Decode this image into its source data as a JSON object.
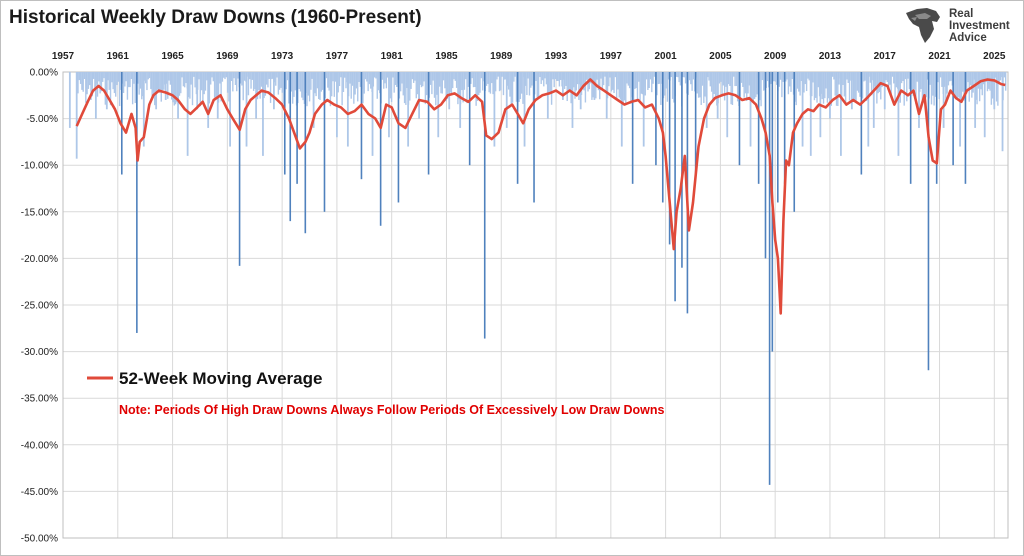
{
  "chart_data": {
    "type": "bar+line",
    "title": "Historical Weekly Draw Downs (1960-Present)",
    "xlim": [
      1957,
      2026
    ],
    "ylim": [
      -50,
      0
    ],
    "y_ticks": [
      0,
      -5,
      -10,
      -15,
      -20,
      -25,
      -30,
      -35,
      -40,
      -45,
      -50
    ],
    "y_tick_labels": [
      "0.00%",
      "-5.00%",
      "-10.00%",
      "-15.00%",
      "-20.00%",
      "-25.00%",
      "-30.00%",
      "-35.00%",
      "-40.00%",
      "-45.00%",
      "-50.00%"
    ],
    "x_ticks": [
      1957,
      1961,
      1965,
      1969,
      1973,
      1977,
      1981,
      1985,
      1989,
      1993,
      1997,
      2001,
      2005,
      2009,
      2013,
      2017,
      2021,
      2025
    ],
    "x_tick_labels": [
      "1957",
      "1961",
      "1965",
      "1969",
      "1973",
      "1977",
      "1981",
      "1985",
      "1989",
      "1993",
      "1997",
      "2001",
      "2005",
      "2009",
      "2013",
      "2017",
      "2021",
      "2025"
    ],
    "grid": true,
    "legend_position": "left-middle",
    "series": [
      {
        "name": "Weekly Draw Down",
        "kind": "bar",
        "color": "#aec7e8",
        "deep_color": "#4f81bd",
        "x": [
          1957.5,
          1958.0,
          1959.4,
          1960.2,
          1961.3,
          1962.4,
          1962.9,
          1963.8,
          1964.5,
          1965.4,
          1966.1,
          1966.8,
          1967.6,
          1968.3,
          1969.2,
          1969.9,
          1970.4,
          1971.1,
          1971.6,
          1972.4,
          1973.2,
          1973.6,
          1974.1,
          1974.7,
          1975.3,
          1976.1,
          1977.0,
          1977.8,
          1978.8,
          1979.6,
          1980.2,
          1980.8,
          1981.5,
          1982.2,
          1983.0,
          1983.7,
          1984.4,
          1985.2,
          1986.0,
          1986.7,
          1987.8,
          1988.5,
          1989.4,
          1990.2,
          1990.7,
          1991.4,
          1992.4,
          1993.5,
          1994.2,
          1994.8,
          1995.8,
          1996.7,
          1997.8,
          1998.6,
          1999.4,
          2000.3,
          2000.8,
          2001.3,
          2001.7,
          2002.2,
          2002.6,
          2003.2,
          2004.0,
          2004.8,
          2005.5,
          2006.4,
          2007.2,
          2007.8,
          2008.3,
          2008.6,
          2008.8,
          2009.2,
          2009.7,
          2010.4,
          2011.0,
          2011.6,
          2012.3,
          2013.0,
          2013.8,
          2014.6,
          2015.3,
          2015.8,
          2016.2,
          2017.0,
          2018.0,
          2018.9,
          2019.5,
          2020.2,
          2020.8,
          2021.3,
          2022.0,
          2022.5,
          2022.9,
          2023.6,
          2024.3,
          2025.0,
          2025.6
        ],
        "values": [
          -6,
          -9.3,
          -5,
          -4,
          -11,
          -28,
          -8,
          -4,
          -3,
          -5,
          -9,
          -4,
          -6,
          -5,
          -8,
          -20.8,
          -8,
          -5,
          -9,
          -4,
          -11,
          -16,
          -12,
          -17.3,
          -6,
          -15,
          -7,
          -8,
          -11.5,
          -9,
          -16.5,
          -7,
          -14,
          -8,
          -5,
          -11,
          -7,
          -4,
          -6,
          -10,
          -28.6,
          -8,
          -6,
          -12,
          -8,
          -14,
          -5,
          -3,
          -6,
          -4,
          -3,
          -5,
          -8,
          -12,
          -8,
          -10,
          -14,
          -18.5,
          -24.6,
          -21,
          -25.9,
          -11,
          -6,
          -5,
          -7,
          -10,
          -8,
          -12,
          -20,
          -44.3,
          -30,
          -14,
          -12,
          -15,
          -8,
          -9,
          -7,
          -5,
          -9,
          -4,
          -11,
          -8,
          -6,
          -4,
          -9,
          -12,
          -6,
          -32,
          -12,
          -6,
          -10,
          -8,
          -12,
          -6,
          -7,
          -4,
          -8.5
        ]
      },
      {
        "name": "52-Week Moving Average",
        "kind": "line",
        "color": "#e04a3a",
        "x": [
          1958.0,
          1958.4,
          1958.8,
          1959.2,
          1959.6,
          1960.0,
          1960.4,
          1960.8,
          1961.2,
          1961.6,
          1962.0,
          1962.3,
          1962.45,
          1962.6,
          1962.9,
          1963.3,
          1963.6,
          1964.0,
          1964.5,
          1965.0,
          1965.4,
          1965.9,
          1966.3,
          1966.8,
          1967.2,
          1967.6,
          1968.0,
          1968.5,
          1969.0,
          1969.4,
          1969.9,
          1970.3,
          1970.7,
          1971.1,
          1971.5,
          1972.0,
          1972.5,
          1973.0,
          1973.5,
          1974.0,
          1974.3,
          1974.7,
          1975.0,
          1975.4,
          1975.9,
          1976.3,
          1976.8,
          1977.3,
          1977.8,
          1978.3,
          1978.8,
          1979.3,
          1979.8,
          1980.2,
          1980.6,
          1981.0,
          1981.5,
          1982.0,
          1982.5,
          1983.0,
          1983.6,
          1984.1,
          1984.6,
          1985.1,
          1985.6,
          1986.1,
          1986.6,
          1987.1,
          1987.6,
          1987.9,
          1988.3,
          1988.8,
          1989.3,
          1989.8,
          1990.2,
          1990.6,
          1991.0,
          1991.5,
          1992.0,
          1992.5,
          1993.0,
          1993.5,
          1994.0,
          1994.5,
          1995.0,
          1995.5,
          1996.0,
          1996.5,
          1997.0,
          1997.5,
          1998.0,
          1998.5,
          1999.0,
          1999.5,
          2000.0,
          2000.5,
          2000.8,
          2001.0,
          2001.3,
          2001.6,
          2001.8,
          2002.1,
          2002.4,
          2002.7,
          2003.0,
          2003.4,
          2003.8,
          2004.2,
          2004.6,
          2005.1,
          2005.6,
          2006.1,
          2006.6,
          2007.1,
          2007.6,
          2008.0,
          2008.3,
          2008.6,
          2008.8,
          2009.0,
          2009.2,
          2009.4,
          2009.6,
          2009.8,
          2010.0,
          2010.3,
          2010.6,
          2011.0,
          2011.4,
          2011.8,
          2012.2,
          2012.7,
          2013.2,
          2013.7,
          2014.2,
          2014.7,
          2015.2,
          2015.7,
          2016.2,
          2016.7,
          2017.2,
          2017.7,
          2018.2,
          2018.7,
          2019.1,
          2019.5,
          2019.9,
          2020.2,
          2020.5,
          2020.8,
          2021.1,
          2021.4,
          2021.8,
          2022.2,
          2022.6,
          2023.0,
          2023.5,
          2024.0,
          2024.5,
          2025.0,
          2025.5,
          2025.8
        ],
        "values": [
          -5.8,
          -4.5,
          -3.2,
          -2.0,
          -1.5,
          -2.0,
          -3.0,
          -4.0,
          -5.5,
          -6.5,
          -4.5,
          -6.0,
          -9.5,
          -7.5,
          -7.0,
          -3.5,
          -2.5,
          -2.0,
          -2.2,
          -2.5,
          -3.0,
          -4.0,
          -4.5,
          -3.8,
          -3.2,
          -4.5,
          -3.0,
          -2.5,
          -4.0,
          -5.0,
          -6.2,
          -4.0,
          -3.0,
          -2.5,
          -2.0,
          -2.2,
          -2.8,
          -3.5,
          -5.0,
          -7.0,
          -8.2,
          -7.5,
          -6.5,
          -4.5,
          -3.5,
          -3.0,
          -3.5,
          -3.8,
          -4.5,
          -4.2,
          -3.5,
          -4.5,
          -5.0,
          -6.0,
          -3.5,
          -3.8,
          -5.5,
          -6.0,
          -4.5,
          -3.0,
          -3.2,
          -4.0,
          -3.5,
          -2.5,
          -2.3,
          -2.8,
          -3.2,
          -2.5,
          -3.2,
          -6.8,
          -7.2,
          -6.5,
          -4.0,
          -3.5,
          -4.5,
          -5.5,
          -4.0,
          -3.0,
          -2.5,
          -2.3,
          -2.0,
          -2.5,
          -2.0,
          -2.5,
          -1.5,
          -0.8,
          -1.5,
          -2.0,
          -2.5,
          -3.0,
          -3.5,
          -3.2,
          -3.0,
          -3.8,
          -3.5,
          -5.0,
          -6.5,
          -9.0,
          -14.0,
          -19.0,
          -15.0,
          -12.5,
          -9.0,
          -17.0,
          -14.0,
          -8.0,
          -5.0,
          -3.5,
          -2.8,
          -2.5,
          -2.3,
          -2.5,
          -3.0,
          -2.8,
          -3.5,
          -5.0,
          -6.5,
          -9.0,
          -14.0,
          -18.0,
          -20.0,
          -25.9,
          -16.0,
          -9.5,
          -10.0,
          -6.5,
          -5.5,
          -4.5,
          -4.0,
          -4.2,
          -3.5,
          -3.8,
          -3.0,
          -2.5,
          -3.5,
          -3.0,
          -3.5,
          -2.8,
          -2.0,
          -1.2,
          -1.5,
          -3.5,
          -2.0,
          -2.5,
          -2.0,
          -4.5,
          -2.5,
          -7.0,
          -9.5,
          -9.8,
          -4.0,
          -3.5,
          -2.0,
          -2.8,
          -3.2,
          -2.0,
          -1.5,
          -1.0,
          -0.8,
          -0.9,
          -1.3,
          -1.4
        ]
      }
    ],
    "legend": [
      {
        "name": "52-Week Moving Average",
        "color": "#e04a3a"
      }
    ],
    "annotations": [
      {
        "text": "Note: Periods Of High Draw Downs Always Follow Periods Of Excessively Low Draw Downs",
        "color": "#e00000"
      }
    ]
  },
  "logo": {
    "line1": "Real",
    "line2": "Investment",
    "line3": "Advice"
  }
}
